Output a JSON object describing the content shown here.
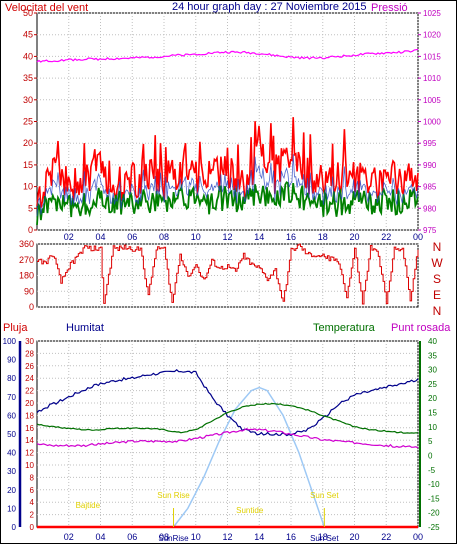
{
  "header": {
    "left_label": "Velocitat del vent",
    "title": "24 hour graph day : 27 Noviembre 2015",
    "right_label": "Pressió"
  },
  "colors": {
    "wind_gust": "#ff0000",
    "wind_avg": "#008000",
    "wind_dir_line": "#dd0000",
    "pressure": "#ff00ff",
    "humidity": "#00008b",
    "temperature": "#007000",
    "dewpoint": "#d000d0",
    "rain": "#ff0000",
    "solar": "#9ec9f5",
    "sun_events": "#e0d000",
    "axis_red": "#c00000",
    "axis_magenta": "#c000c0",
    "axis_blue": "#00008b",
    "axis_green": "#007000",
    "grid": "#c0c0c0"
  },
  "x_tick_labels": [
    "02",
    "04",
    "06",
    "08",
    "10",
    "12",
    "14",
    "16",
    "18",
    "20",
    "22",
    "00"
  ],
  "chart_data": [
    {
      "type": "line",
      "panel": "wind_and_pressure",
      "x_hours": [
        0,
        1,
        2,
        3,
        4,
        5,
        6,
        7,
        8,
        9,
        10,
        11,
        12,
        13,
        14,
        15,
        16,
        17,
        18,
        19,
        20,
        21,
        22,
        23,
        24
      ],
      "left_axis": {
        "label": "Velocitat del vent",
        "ticks": [
          0,
          5,
          10,
          15,
          20,
          25,
          30,
          35,
          40,
          45,
          50
        ],
        "range": [
          0,
          50
        ]
      },
      "right_axis": {
        "label": "Pressió",
        "ticks": [
          975,
          980,
          985,
          990,
          995,
          1000,
          1005,
          1010,
          1015,
          1020,
          1025
        ],
        "range": [
          975,
          1025
        ]
      },
      "series": [
        {
          "name": "Velocitat del vent",
          "axis": "left",
          "values": [
            7,
            14,
            9,
            12,
            13,
            10,
            11,
            12,
            10,
            14,
            12,
            11,
            13,
            10,
            17,
            12,
            18,
            12,
            10,
            11,
            12,
            10,
            12,
            11,
            12
          ]
        },
        {
          "axis": "left",
          "values": [
            4,
            7,
            5,
            6,
            7,
            6,
            6,
            7,
            6,
            8,
            7,
            6,
            8,
            6,
            9,
            7,
            9,
            7,
            6,
            6,
            7,
            6,
            7,
            6,
            8
          ]
        },
        {
          "name": "Pressió",
          "axis": "right",
          "values": [
            1013.8,
            1014.0,
            1014.2,
            1014.4,
            1014.4,
            1014.5,
            1014.6,
            1014.8,
            1015.0,
            1015.3,
            1015.5,
            1015.8,
            1016.0,
            1015.9,
            1015.7,
            1015.2,
            1014.8,
            1014.6,
            1014.7,
            1015.0,
            1015.3,
            1015.6,
            1015.8,
            1016.0,
            1016.4
          ]
        }
      ]
    },
    {
      "type": "line",
      "panel": "wind_direction",
      "x_hours": [
        0,
        0.5,
        1,
        1.5,
        2,
        3,
        4,
        4.2,
        4.8,
        5,
        5.5,
        6,
        6.5,
        7,
        7.5,
        8,
        8.5,
        9,
        9.5,
        10,
        10.5,
        11,
        11.5,
        12,
        12.5,
        13,
        13.5,
        14,
        14.5,
        15,
        15.5,
        16,
        16.5,
        17,
        18,
        19,
        19.5,
        20,
        20.5,
        21,
        21.5,
        22,
        22.5,
        23,
        23.5,
        24
      ],
      "left_axis": {
        "ticks": [
          0,
          90,
          180,
          270,
          360
        ],
        "range": [
          0,
          360
        ]
      },
      "right_axis": {
        "ticks": [
          "N",
          "W",
          "S",
          "E",
          "N"
        ]
      },
      "series": [
        {
          "values": [
            270,
            250,
            300,
            140,
            230,
            340,
            330,
            20,
            340,
            330,
            340,
            330,
            340,
            60,
            340,
            330,
            20,
            300,
            180,
            240,
            150,
            260,
            220,
            230,
            200,
            300,
            240,
            220,
            160,
            210,
            20,
            320,
            350,
            300,
            290,
            260,
            60,
            330,
            20,
            340,
            300,
            20,
            330,
            340,
            40,
            330
          ]
        }
      ]
    },
    {
      "type": "line",
      "panel": "temperature_humidity",
      "x_hours": [
        0,
        1,
        2,
        3,
        4,
        5,
        6,
        7,
        8,
        9,
        10,
        11,
        12,
        13,
        14,
        15,
        16,
        17,
        18,
        19,
        20,
        21,
        22,
        23,
        24
      ],
      "legend": [
        "Pluja",
        "Humitat",
        "Temperatura",
        "Punt rosada"
      ],
      "left_axis_humidity": {
        "label": "Humitat",
        "ticks": [
          0,
          10,
          20,
          30,
          40,
          50,
          60,
          70,
          80,
          90,
          100
        ],
        "range": [
          0,
          100
        ]
      },
      "left_axis_rain": {
        "label": "Pluja",
        "ticks": [
          0,
          2,
          4,
          6,
          8,
          10,
          12,
          14,
          16,
          18,
          20,
          22,
          24,
          26,
          28,
          30
        ],
        "range": [
          0,
          30
        ]
      },
      "right_axis_temperature": {
        "label": "Temperatura",
        "ticks": [
          -25,
          -20,
          -15,
          -10,
          -5,
          0,
          5,
          10,
          15,
          20,
          25,
          30,
          35,
          40
        ],
        "range": [
          -25,
          40
        ]
      },
      "series": [
        {
          "name": "Humitat",
          "axis": "humidity",
          "values": [
            62,
            66,
            70,
            74,
            77,
            79,
            80,
            82,
            83,
            84,
            83,
            70,
            60,
            52,
            50,
            50,
            50,
            52,
            58,
            66,
            71,
            73,
            75,
            77,
            79
          ]
        },
        {
          "name": "Temperatura",
          "axis": "temperature",
          "values": [
            11,
            10,
            9.5,
            9,
            9,
            9.5,
            9.5,
            9.5,
            9,
            8,
            9,
            12,
            15,
            17,
            18,
            18,
            17.5,
            16,
            14,
            12,
            10,
            9,
            8.5,
            8,
            8
          ]
        },
        {
          "name": "Punt rosada",
          "axis": "temperature",
          "values": [
            4,
            3.5,
            3.5,
            3.5,
            4,
            4.5,
            5,
            5,
            5,
            5,
            6,
            7,
            8,
            9,
            9,
            8.5,
            7.5,
            6.5,
            5.5,
            5,
            4.5,
            4,
            3.5,
            3,
            3
          ]
        },
        {
          "name": "Pluja",
          "axis": "rain",
          "values": [
            0,
            0,
            0,
            0,
            0,
            0,
            0,
            0,
            0,
            0,
            0,
            0,
            0,
            0,
            0,
            0,
            0,
            0,
            0,
            0,
            0,
            0,
            0,
            0,
            0
          ]
        }
      ],
      "solar_curve": {
        "x_hours": [
          8.6,
          9.5,
          10.5,
          11.5,
          12.5,
          13.5,
          14,
          14.5,
          15.5,
          16.5,
          17.3,
          18.1
        ],
        "values": [
          0,
          3,
          8,
          14,
          19,
          22,
          22.5,
          22,
          18,
          12,
          6,
          0
        ]
      },
      "annotations": [
        {
          "text": "Sun Rise",
          "x_hour": 8.6
        },
        {
          "text": "Sun Set",
          "x_hour": 18.1
        },
        {
          "text": "Suntide",
          "x_hour": 13.4
        },
        {
          "text": "Bajtide",
          "x_hour": 3.2
        },
        {
          "text": "SunRise",
          "x_hour": 8.6
        },
        {
          "text": "Sun Set",
          "x_hour": 18.1
        }
      ]
    }
  ],
  "panel3_labels": {
    "rain": "Pluja",
    "humidity": "Humitat",
    "temperature": "Temperatura",
    "dewpoint": "Punt rosada"
  }
}
